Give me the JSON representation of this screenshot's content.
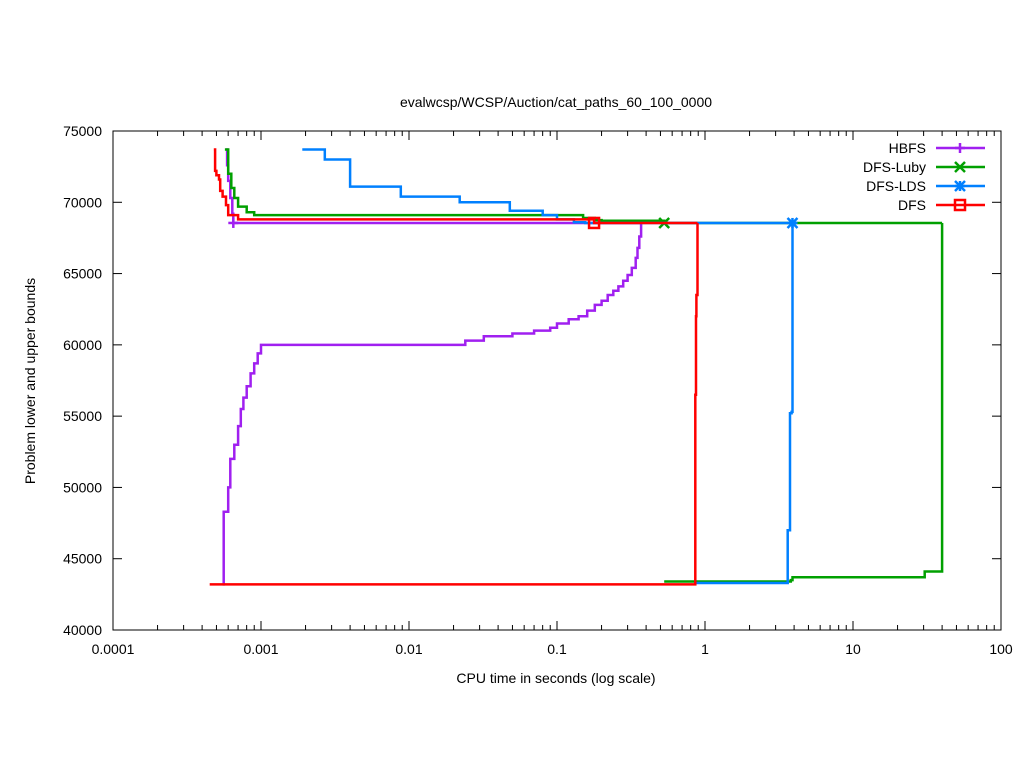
{
  "chart_data": {
    "type": "line",
    "title": "evalwcsp/WCSP/Auction/cat_paths_60_100_0000",
    "xlabel": "CPU time in seconds (log scale)",
    "ylabel": "Problem lower and upper bounds",
    "x_scale": "log",
    "xlim": [
      0.0001,
      100
    ],
    "ylim": [
      40000,
      75000
    ],
    "x_ticks": [
      {
        "value": 0.0001,
        "label": "0.0001"
      },
      {
        "value": 0.001,
        "label": "0.001"
      },
      {
        "value": 0.01,
        "label": "0.01"
      },
      {
        "value": 0.1,
        "label": "0.1"
      },
      {
        "value": 1,
        "label": "1"
      },
      {
        "value": 10,
        "label": "10"
      },
      {
        "value": 100,
        "label": "100"
      }
    ],
    "y_ticks": [
      {
        "value": 40000,
        "label": "40000"
      },
      {
        "value": 45000,
        "label": "45000"
      },
      {
        "value": 50000,
        "label": "50000"
      },
      {
        "value": 55000,
        "label": "55000"
      },
      {
        "value": 60000,
        "label": "60000"
      },
      {
        "value": 65000,
        "label": "65000"
      },
      {
        "value": 70000,
        "label": "70000"
      },
      {
        "value": 75000,
        "label": "75000"
      }
    ],
    "grid": false,
    "legend_position": "top-right",
    "series": [
      {
        "name": "HBFS",
        "color": "#a020f0",
        "marker": "plus",
        "marker_point": [
          0.00065,
          68550
        ],
        "upper": [
          [
            0.00058,
            73700
          ],
          [
            0.00059,
            72600
          ],
          [
            0.0006,
            71500
          ],
          [
            0.00062,
            70300
          ],
          [
            0.00064,
            69200
          ],
          [
            0.00065,
            68550
          ],
          [
            0.37,
            68550
          ]
        ],
        "lower": [
          [
            0.00055,
            43200
          ],
          [
            0.00056,
            48300
          ],
          [
            0.0006,
            50000
          ],
          [
            0.00062,
            52000
          ],
          [
            0.00066,
            53000
          ],
          [
            0.0007,
            54300
          ],
          [
            0.00073,
            55500
          ],
          [
            0.00076,
            56300
          ],
          [
            0.0008,
            57100
          ],
          [
            0.00085,
            58000
          ],
          [
            0.0009,
            58700
          ],
          [
            0.00095,
            59400
          ],
          [
            0.001,
            60000
          ],
          [
            0.023,
            60000
          ],
          [
            0.024,
            60300
          ],
          [
            0.032,
            60600
          ],
          [
            0.05,
            60800
          ],
          [
            0.07,
            61000
          ],
          [
            0.09,
            61200
          ],
          [
            0.1,
            61500
          ],
          [
            0.12,
            61800
          ],
          [
            0.14,
            62000
          ],
          [
            0.16,
            62400
          ],
          [
            0.18,
            62800
          ],
          [
            0.2,
            63100
          ],
          [
            0.22,
            63500
          ],
          [
            0.24,
            63800
          ],
          [
            0.26,
            64100
          ],
          [
            0.28,
            64500
          ],
          [
            0.3,
            64900
          ],
          [
            0.32,
            65400
          ],
          [
            0.34,
            66100
          ],
          [
            0.35,
            66800
          ],
          [
            0.36,
            67600
          ],
          [
            0.37,
            68550
          ]
        ]
      },
      {
        "name": "DFS-Luby",
        "color": "#00a000",
        "marker": "x",
        "marker_point": [
          0.53,
          68550
        ],
        "upper": [
          [
            0.00057,
            73700
          ],
          [
            0.0006,
            72000
          ],
          [
            0.00063,
            71000
          ],
          [
            0.00066,
            70300
          ],
          [
            0.0007,
            69700
          ],
          [
            0.0008,
            69300
          ],
          [
            0.0009,
            69100
          ],
          [
            0.1,
            69100
          ],
          [
            0.15,
            68900
          ],
          [
            0.18,
            68750
          ],
          [
            0.2,
            68700
          ],
          [
            0.53,
            68550
          ],
          [
            40,
            68550
          ]
        ],
        "lower": [
          [
            0.53,
            43400
          ],
          [
            3.8,
            43500
          ],
          [
            3.9,
            43700
          ],
          [
            30,
            43700
          ],
          [
            30.5,
            44100
          ],
          [
            40,
            44100
          ],
          [
            40,
            68550
          ]
        ]
      },
      {
        "name": "DFS-LDS",
        "color": "#0080ff",
        "marker": "star",
        "marker_point": [
          3.9,
          68550
        ],
        "upper": [
          [
            0.0019,
            73700
          ],
          [
            0.0027,
            73000
          ],
          [
            0.004,
            71100
          ],
          [
            0.0088,
            70400
          ],
          [
            0.022,
            70000
          ],
          [
            0.048,
            69400
          ],
          [
            0.08,
            69100
          ],
          [
            0.1,
            68800
          ],
          [
            0.13,
            68600
          ],
          [
            0.155,
            68550
          ],
          [
            3.9,
            68550
          ]
        ],
        "lower": [
          [
            0.85,
            43300
          ],
          [
            3.6,
            43300
          ],
          [
            3.62,
            47000
          ],
          [
            3.72,
            47000
          ],
          [
            3.75,
            55200
          ],
          [
            3.85,
            55300
          ],
          [
            3.9,
            68550
          ]
        ]
      },
      {
        "name": "DFS",
        "color": "#ff0000",
        "marker": "square",
        "marker_point": [
          0.178,
          68550
        ],
        "upper": [
          [
            0.00048,
            73700
          ],
          [
            0.00049,
            72200
          ],
          [
            0.0005,
            71900
          ],
          [
            0.00052,
            71600
          ],
          [
            0.00053,
            70800
          ],
          [
            0.00055,
            70400
          ],
          [
            0.00058,
            69800
          ],
          [
            0.0006,
            69100
          ],
          [
            0.0007,
            68800
          ],
          [
            0.1,
            68800
          ],
          [
            0.178,
            68550
          ],
          [
            0.89,
            68550
          ]
        ],
        "lower": [
          [
            0.00045,
            43200
          ],
          [
            0.85,
            43200
          ],
          [
            0.86,
            56500
          ],
          [
            0.87,
            62000
          ],
          [
            0.875,
            63500
          ],
          [
            0.89,
            68550
          ]
        ]
      }
    ]
  }
}
